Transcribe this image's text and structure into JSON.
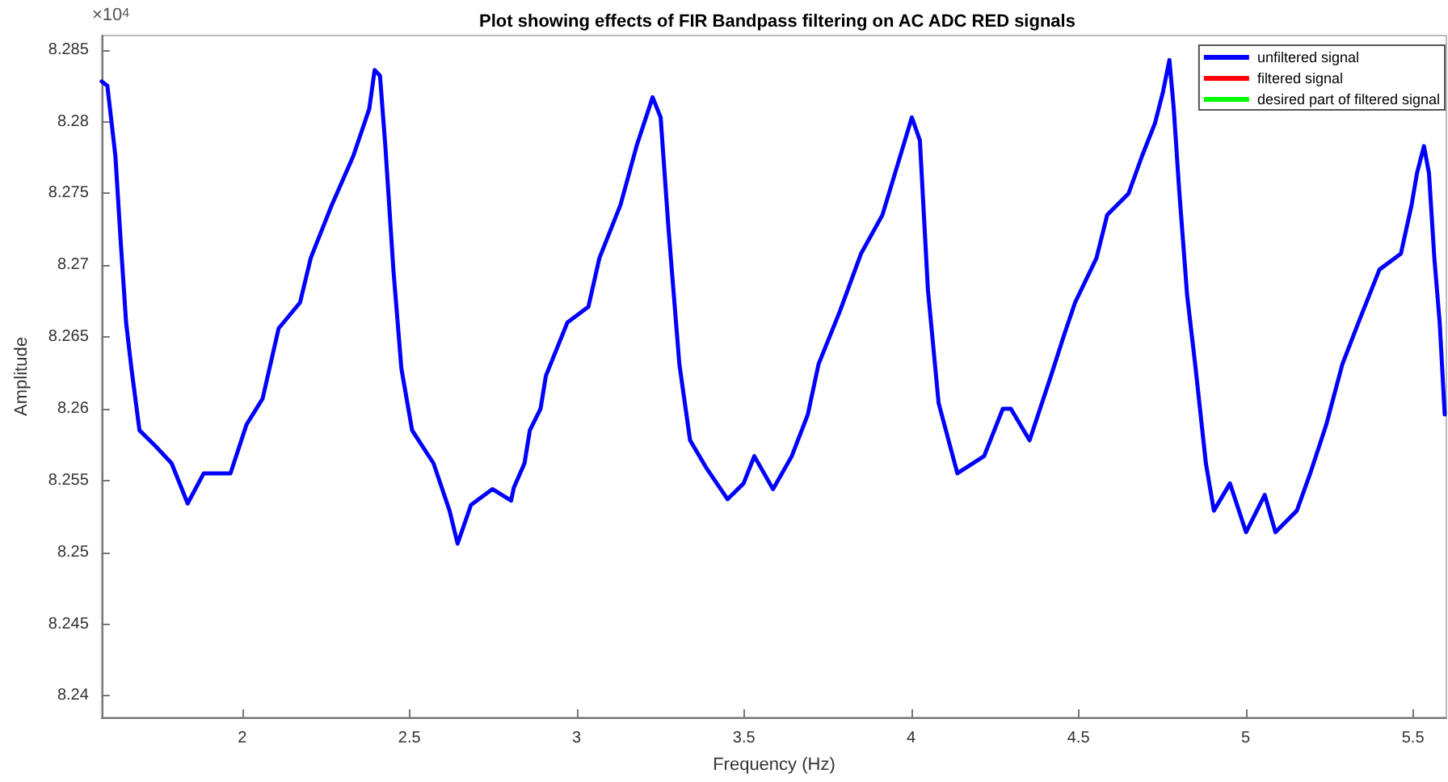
{
  "chart_data": {
    "type": "line",
    "title": "Plot showing effects of FIR Bandpass filtering on AC ADC RED signals",
    "xlabel": "Frequency (Hz)",
    "ylabel": "Amplitude",
    "annotations": [
      "×10$^{4}$"
    ],
    "xlim": [
      1.58,
      5.6
    ],
    "xticks": [
      2,
      2.5,
      3,
      3.5,
      4,
      4.5,
      5,
      5.5
    ],
    "ylim": [
      8.2385,
      8.286
    ],
    "yticks": [
      8.24,
      8.245,
      8.25,
      8.255,
      8.26,
      8.265,
      8.27,
      8.275,
      8.28,
      8.285
    ],
    "grid": false,
    "legend": "top right",
    "marker": "none",
    "line_style": "solid",
    "series": [
      {
        "name": "unfiltered signal",
        "color": "#0000ff",
        "x": [
          1.58,
          1.597,
          1.621,
          1.637,
          1.653,
          1.669,
          1.693,
          1.741,
          1.789,
          1.837,
          1.885,
          1.965,
          2.013,
          2.061,
          2.109,
          2.173,
          2.205,
          2.268,
          2.332,
          2.38,
          2.396,
          2.412,
          2.428,
          2.452,
          2.476,
          2.508,
          2.572,
          2.62,
          2.644,
          2.684,
          2.748,
          2.804,
          2.812,
          2.844,
          2.86,
          2.892,
          2.908,
          2.972,
          3.035,
          3.068,
          3.131,
          3.179,
          3.227,
          3.251,
          3.275,
          3.307,
          3.339,
          3.387,
          3.451,
          3.499,
          3.531,
          3.587,
          3.643,
          3.691,
          3.723,
          3.787,
          3.85,
          3.914,
          3.962,
          4.002,
          4.026,
          4.05,
          4.082,
          4.138,
          4.218,
          4.274,
          4.298,
          4.354,
          4.418,
          4.458,
          4.49,
          4.554,
          4.586,
          4.65,
          4.69,
          4.729,
          4.753,
          4.772,
          4.785,
          4.801,
          4.825,
          4.849,
          4.881,
          4.905,
          4.953,
          5.001,
          5.057,
          5.089,
          5.153,
          5.193,
          5.241,
          5.289,
          5.337,
          5.4,
          5.464,
          5.496,
          5.512,
          5.533,
          5.548,
          5.564,
          5.58,
          5.595
        ],
        "values": [
          8.2828,
          8.2825,
          8.2776,
          8.2716,
          8.266,
          8.2628,
          8.2585,
          8.2574,
          8.2562,
          8.2534,
          8.2555,
          8.2555,
          8.2589,
          8.2607,
          8.2656,
          8.2674,
          8.2705,
          8.2742,
          8.2776,
          8.2809,
          8.2836,
          8.2832,
          8.2783,
          8.2697,
          8.2628,
          8.2585,
          8.2562,
          8.2529,
          8.2506,
          8.2533,
          8.2544,
          8.2536,
          8.2545,
          8.2562,
          8.2585,
          8.26,
          8.2623,
          8.266,
          8.2671,
          8.2705,
          8.2742,
          8.2783,
          8.2817,
          8.2803,
          8.2724,
          8.2631,
          8.2578,
          8.2559,
          8.2537,
          8.2548,
          8.2567,
          8.2544,
          8.2567,
          8.2596,
          8.2631,
          8.2668,
          8.2708,
          8.2735,
          8.2772,
          8.2803,
          8.2787,
          8.2683,
          8.2604,
          8.2555,
          8.2567,
          8.26,
          8.26,
          8.2578,
          8.2623,
          8.2652,
          8.2674,
          8.2705,
          8.2735,
          8.275,
          8.2776,
          8.2799,
          8.2821,
          8.2843,
          8.2809,
          8.2753,
          8.2679,
          8.2631,
          8.2562,
          8.2529,
          8.2548,
          8.2514,
          8.254,
          8.2514,
          8.2529,
          8.2555,
          8.2589,
          8.2631,
          8.266,
          8.2697,
          8.2708,
          8.2742,
          8.2764,
          8.2783,
          8.2764,
          8.2705,
          8.266,
          8.2596
        ]
      },
      {
        "name": "filtered signal",
        "color": "#ff0000"
      },
      {
        "name": "desired part of filtered signal",
        "color": "#00ff00"
      }
    ]
  }
}
